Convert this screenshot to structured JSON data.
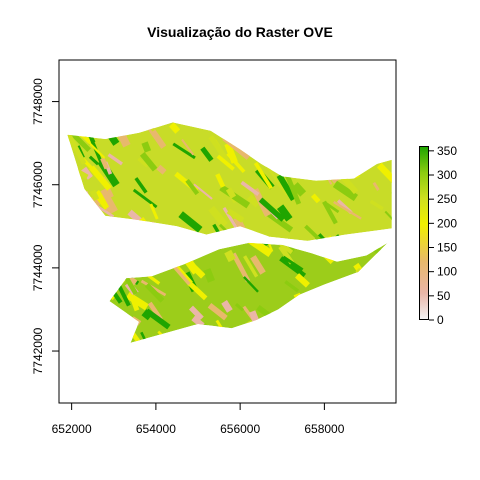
{
  "chart_data": {
    "type": "heatmap",
    "title": "Visualização do Raster OVE",
    "xlabel": "",
    "ylabel": "",
    "xlim": [
      651700,
      659700
    ],
    "ylim": [
      7740750,
      7749000
    ],
    "x_ticks": [
      652000,
      654000,
      656000,
      658000
    ],
    "y_ticks": [
      7742000,
      7744000,
      7746000,
      7748000
    ],
    "x_tick_labels": [
      "652000",
      "654000",
      "656000",
      "658000"
    ],
    "y_tick_labels": [
      "7742000",
      "7744000",
      "7746000",
      "7748000"
    ],
    "legend": {
      "position": "right",
      "range": [
        0,
        360
      ],
      "ticks": [
        0,
        50,
        100,
        150,
        200,
        250,
        300,
        350
      ],
      "tick_labels": [
        "0",
        "50",
        "100",
        "150",
        "200",
        "250",
        "300",
        "350"
      ],
      "colors": [
        "#f2f2f2",
        "#eab6a8",
        "#e8b86d",
        "#f0f000",
        "#cfe020",
        "#8ccc10",
        "#1fa500"
      ]
    },
    "grid": false,
    "raster_extent": {
      "north_lobe_outline": [
        [
          651900,
          7747200
        ],
        [
          652800,
          7747100
        ],
        [
          653600,
          7747250
        ],
        [
          654400,
          7747500
        ],
        [
          655300,
          7747300
        ],
        [
          656000,
          7746850
        ],
        [
          656500,
          7746500
        ],
        [
          657000,
          7746200
        ],
        [
          657800,
          7746100
        ],
        [
          658700,
          7746150
        ],
        [
          659250,
          7746500
        ],
        [
          659600,
          7746600
        ],
        [
          659600,
          7744950
        ],
        [
          658500,
          7744800
        ],
        [
          657600,
          7744650
        ],
        [
          656700,
          7744750
        ],
        [
          656000,
          7745000
        ],
        [
          655200,
          7744800
        ],
        [
          654500,
          7745000
        ],
        [
          653600,
          7745150
        ],
        [
          652800,
          7745250
        ],
        [
          652300,
          7745900
        ]
      ],
      "south_lobe_outline": [
        [
          652900,
          7743200
        ],
        [
          653300,
          7743750
        ],
        [
          653900,
          7743800
        ],
        [
          654700,
          7744100
        ],
        [
          655500,
          7744450
        ],
        [
          656200,
          7744600
        ],
        [
          657000,
          7744550
        ],
        [
          657700,
          7744350
        ],
        [
          658300,
          7744150
        ],
        [
          659000,
          7744300
        ],
        [
          659500,
          7744600
        ],
        [
          658800,
          7743900
        ],
        [
          658000,
          7743600
        ],
        [
          657400,
          7743350
        ],
        [
          656900,
          7743000
        ],
        [
          656400,
          7742750
        ],
        [
          655800,
          7742550
        ],
        [
          655000,
          7742650
        ],
        [
          654300,
          7742450
        ],
        [
          653400,
          7742200
        ],
        [
          653600,
          7742700
        ]
      ]
    }
  }
}
